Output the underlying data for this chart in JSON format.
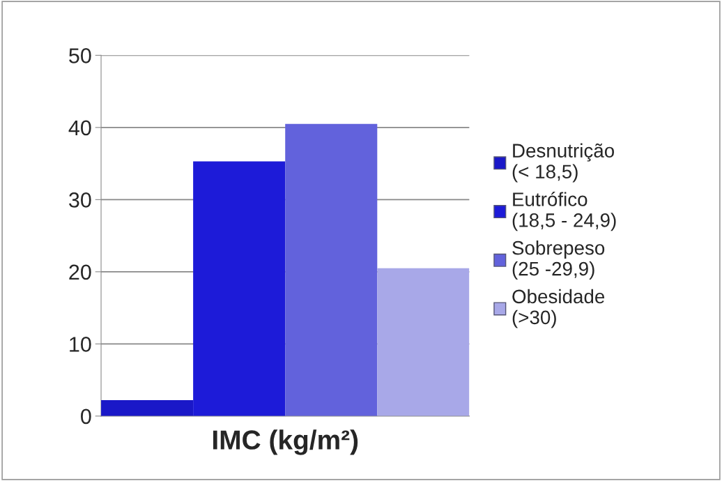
{
  "chart_data": {
    "type": "bar",
    "xlabel": "IMC (kg/m²)",
    "categories": [
      null,
      null,
      null,
      null
    ],
    "series": [
      {
        "name": "Desnutrição\n(< 18,5)",
        "color": "#1a18c8",
        "values": [
          2.2,
          null,
          null,
          null
        ]
      },
      {
        "name": "Eutrófico\n(18,5 - 24,9)",
        "color": "#1d1bd8",
        "values": [
          null,
          35.3,
          null,
          null
        ]
      },
      {
        "name": "Sobrepeso\n(25 -29,9)",
        "color": "#6262dc",
        "values": [
          null,
          null,
          40.5,
          null
        ]
      },
      {
        "name": "Obesidade\n(>30)",
        "color": "#a8a8e8",
        "values": [
          null,
          null,
          null,
          20.5
        ]
      }
    ],
    "ylim": [
      0,
      50
    ],
    "yticks": [
      0,
      10,
      20,
      30,
      40,
      50
    ],
    "grid": "y",
    "legend": "right"
  }
}
